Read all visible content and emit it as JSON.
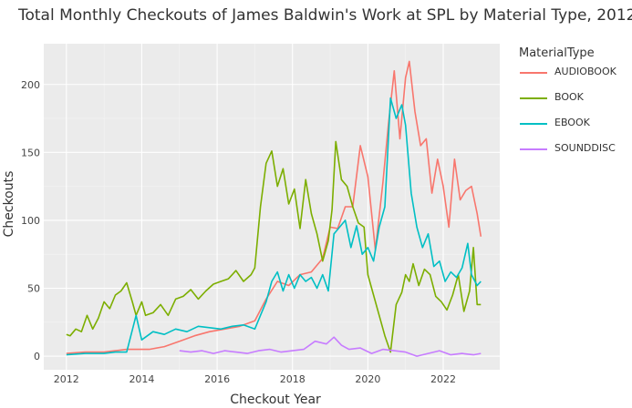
{
  "chart_data": {
    "type": "line",
    "title": "Total Monthly Checkouts of James Baldwin's Work at SPL by Material Type, 2012",
    "xlabel": "Checkout Year",
    "ylabel": "Checkouts",
    "xlim": [
      2011.4,
      2023.5
    ],
    "ylim": [
      -10,
      230
    ],
    "x_ticks": [
      2012,
      2014,
      2016,
      2018,
      2020,
      2022
    ],
    "y_ticks": [
      0,
      50,
      100,
      150,
      200
    ],
    "grid": true,
    "legend_title": "MaterialType",
    "legend_position": "right",
    "series": [
      {
        "name": "AUDIOBOOK",
        "color": "#F8766D",
        "x": [
          2012.0,
          2012.5,
          2013.0,
          2013.3,
          2013.6,
          2013.9,
          2014.2,
          2014.6,
          2015.0,
          2015.4,
          2015.8,
          2016.2,
          2016.6,
          2017.0,
          2017.3,
          2017.6,
          2017.9,
          2018.2,
          2018.5,
          2018.8,
          2019.0,
          2019.2,
          2019.4,
          2019.6,
          2019.8,
          2020.0,
          2020.2,
          2020.4,
          2020.55,
          2020.7,
          2020.85,
          2021.0,
          2021.1,
          2021.25,
          2021.4,
          2021.55,
          2021.7,
          2021.85,
          2022.0,
          2022.15,
          2022.3,
          2022.45,
          2022.6,
          2022.75,
          2022.9,
          2023.0
        ],
        "values": [
          2,
          3,
          3,
          4,
          5,
          5,
          5,
          7,
          11,
          15,
          18,
          20,
          22,
          26,
          42,
          55,
          52,
          60,
          62,
          72,
          95,
          94,
          110,
          110,
          155,
          132,
          78,
          128,
          172,
          210,
          160,
          205,
          217,
          180,
          155,
          160,
          120,
          145,
          125,
          95,
          145,
          115,
          122,
          125,
          105,
          88
        ]
      },
      {
        "name": "BOOK",
        "color": "#7CAE00",
        "x": [
          2012.0,
          2012.1,
          2012.25,
          2012.4,
          2012.55,
          2012.7,
          2012.85,
          2013.0,
          2013.15,
          2013.3,
          2013.45,
          2013.6,
          2013.75,
          2013.85,
          2014.0,
          2014.1,
          2014.3,
          2014.5,
          2014.7,
          2014.9,
          2015.1,
          2015.3,
          2015.5,
          2015.7,
          2015.9,
          2016.1,
          2016.3,
          2016.5,
          2016.7,
          2016.9,
          2017.0,
          2017.15,
          2017.3,
          2017.45,
          2017.6,
          2017.75,
          2017.9,
          2018.05,
          2018.2,
          2018.35,
          2018.5,
          2018.65,
          2018.8,
          2018.95,
          2019.05,
          2019.15,
          2019.3,
          2019.45,
          2019.6,
          2019.75,
          2019.9,
          2020.0,
          2020.15,
          2020.3,
          2020.45,
          2020.6,
          2020.75,
          2020.9,
          2021.0,
          2021.1,
          2021.2,
          2021.35,
          2021.5,
          2021.65,
          2021.8,
          2021.95,
          2022.1,
          2022.25,
          2022.4,
          2022.55,
          2022.7,
          2022.8,
          2022.9,
          2023.0
        ],
        "values": [
          16,
          15,
          20,
          18,
          30,
          20,
          28,
          40,
          35,
          45,
          48,
          54,
          40,
          30,
          40,
          30,
          32,
          38,
          30,
          42,
          44,
          49,
          42,
          48,
          53,
          55,
          57,
          63,
          55,
          60,
          65,
          110,
          142,
          151,
          125,
          138,
          112,
          123,
          94,
          130,
          105,
          90,
          70,
          85,
          108,
          158,
          130,
          125,
          110,
          98,
          95,
          60,
          45,
          30,
          15,
          3,
          38,
          47,
          60,
          55,
          68,
          52,
          64,
          60,
          44,
          40,
          34,
          45,
          60,
          33,
          48,
          80,
          38,
          38
        ]
      },
      {
        "name": "EBOOK",
        "color": "#00BFC4",
        "x": [
          2012.0,
          2012.5,
          2013.0,
          2013.3,
          2013.6,
          2013.85,
          2014.0,
          2014.3,
          2014.6,
          2014.9,
          2015.2,
          2015.5,
          2015.8,
          2016.1,
          2016.4,
          2016.7,
          2017.0,
          2017.15,
          2017.3,
          2017.45,
          2017.6,
          2017.75,
          2017.9,
          2018.05,
          2018.2,
          2018.35,
          2018.5,
          2018.65,
          2018.8,
          2018.95,
          2019.1,
          2019.25,
          2019.4,
          2019.55,
          2019.7,
          2019.85,
          2020.0,
          2020.15,
          2020.3,
          2020.45,
          2020.6,
          2020.75,
          2020.9,
          2021.0,
          2021.15,
          2021.3,
          2021.45,
          2021.6,
          2021.75,
          2021.9,
          2022.05,
          2022.2,
          2022.35,
          2022.5,
          2022.65,
          2022.75,
          2022.9,
          2023.0
        ],
        "values": [
          1,
          2,
          2,
          3,
          3,
          30,
          12,
          18,
          16,
          20,
          18,
          22,
          21,
          20,
          22,
          23,
          20,
          30,
          40,
          55,
          62,
          48,
          60,
          50,
          60,
          55,
          58,
          50,
          60,
          48,
          90,
          95,
          100,
          80,
          96,
          75,
          80,
          70,
          95,
          110,
          190,
          175,
          185,
          170,
          120,
          95,
          80,
          90,
          66,
          70,
          55,
          62,
          58,
          65,
          83,
          60,
          52,
          55
        ]
      },
      {
        "name": "SOUNDDISC",
        "color": "#C77CFF",
        "x": [
          2015.0,
          2015.3,
          2015.6,
          2015.9,
          2016.2,
          2016.5,
          2016.8,
          2017.1,
          2017.4,
          2017.7,
          2018.0,
          2018.3,
          2018.6,
          2018.9,
          2019.1,
          2019.3,
          2019.5,
          2019.8,
          2020.1,
          2020.4,
          2020.7,
          2021.0,
          2021.3,
          2021.6,
          2021.9,
          2022.2,
          2022.5,
          2022.8,
          2023.0
        ],
        "values": [
          4,
          3,
          4,
          2,
          4,
          3,
          2,
          4,
          5,
          3,
          4,
          5,
          11,
          9,
          14,
          8,
          5,
          6,
          2,
          5,
          4,
          3,
          0,
          2,
          4,
          1,
          2,
          1,
          2
        ]
      }
    ]
  }
}
